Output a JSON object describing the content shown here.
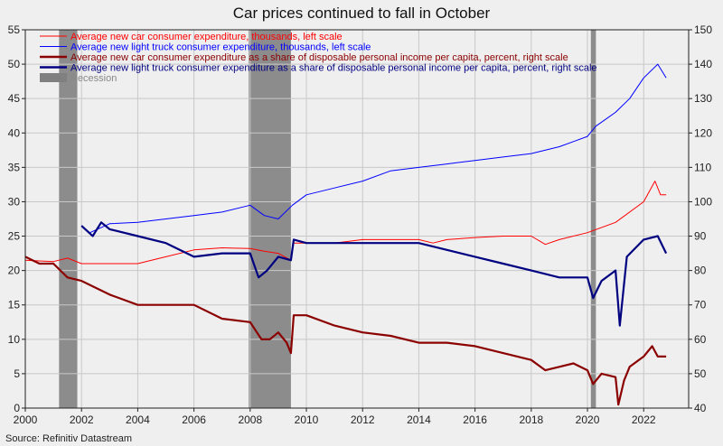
{
  "chart_data": {
    "type": "line",
    "title": "Car prices continued to fall in October",
    "source": "Source: Refinitiv Datastream",
    "x_ticks": [
      "2000",
      "2002",
      "2004",
      "2006",
      "2008",
      "2010",
      "2012",
      "2014",
      "2016",
      "2018",
      "2020",
      "2022"
    ],
    "x_range": [
      2000,
      2023.6
    ],
    "left_axis": {
      "range": [
        0,
        55
      ],
      "ticks": [
        "0",
        "5",
        "10",
        "15",
        "20",
        "25",
        "30",
        "35",
        "40",
        "45",
        "50",
        "55"
      ]
    },
    "right_axis": {
      "range": [
        40,
        150
      ],
      "ticks": [
        "40",
        "50",
        "60",
        "70",
        "80",
        "90",
        "100",
        "110",
        "120",
        "130",
        "140",
        "150"
      ]
    },
    "recessions": [
      {
        "start": 2001.2,
        "end": 2001.85
      },
      {
        "start": 2007.95,
        "end": 2009.45
      },
      {
        "start": 2020.12,
        "end": 2020.3
      }
    ],
    "grid": true,
    "legend_position": "top-left",
    "legend": [
      {
        "label": "Average new car consumer expenditure, thousands, left scale",
        "color": "#ff0000",
        "style": "thin"
      },
      {
        "label": "Average new light truck consumer expenditure, thousands, left scale",
        "color": "#0000ff",
        "style": "thin"
      },
      {
        "label": "Average new car consumer expenditure as a share of disposable personal income per capita, percent, right scale",
        "color": "#8b0000",
        "style": "thick"
      },
      {
        "label": "Average new light truck consumer expenditure as a share of disposable personal income per capita, percent, right scale",
        "color": "#000080",
        "style": "thick"
      },
      {
        "label": "Recession",
        "color": "#808080",
        "style": "box"
      }
    ],
    "series": [
      {
        "name": "Average new car consumer expenditure, thousands, left scale",
        "axis": "left",
        "color": "#ff0000",
        "width": 1,
        "points": [
          [
            2000,
            21.5
          ],
          [
            2001,
            21.3
          ],
          [
            2001.5,
            21.8
          ],
          [
            2002,
            21
          ],
          [
            2003,
            21
          ],
          [
            2004,
            21
          ],
          [
            2005,
            22
          ],
          [
            2006,
            23
          ],
          [
            2007,
            23.3
          ],
          [
            2008,
            23.2
          ],
          [
            2008.5,
            22.8
          ],
          [
            2009,
            22.5
          ],
          [
            2009.45,
            21.5
          ],
          [
            2009.55,
            24
          ],
          [
            2010,
            24
          ],
          [
            2011,
            24
          ],
          [
            2012,
            24.5
          ],
          [
            2013,
            24.5
          ],
          [
            2014,
            24.5
          ],
          [
            2014.5,
            24
          ],
          [
            2015,
            24.5
          ],
          [
            2016,
            24.8
          ],
          [
            2017,
            25
          ],
          [
            2018,
            25
          ],
          [
            2018.5,
            23.8
          ],
          [
            2019,
            24.5
          ],
          [
            2020,
            25.5
          ],
          [
            2021,
            27
          ],
          [
            2022,
            30
          ],
          [
            2022.4,
            33
          ],
          [
            2022.6,
            31
          ],
          [
            2022.8,
            31
          ]
        ]
      },
      {
        "name": "Average new light truck consumer expenditure, thousands, left scale",
        "axis": "left",
        "color": "#0000ff",
        "width": 1,
        "points": [
          [
            2002,
            26.5
          ],
          [
            2002.3,
            25.5
          ],
          [
            2003,
            26.8
          ],
          [
            2004,
            27
          ],
          [
            2005,
            27.5
          ],
          [
            2006,
            28
          ],
          [
            2007,
            28.5
          ],
          [
            2008,
            29.5
          ],
          [
            2008.5,
            28
          ],
          [
            2009,
            27.5
          ],
          [
            2009.5,
            29.5
          ],
          [
            2010,
            31
          ],
          [
            2011,
            32
          ],
          [
            2012,
            33
          ],
          [
            2013,
            34.5
          ],
          [
            2014,
            35
          ],
          [
            2015,
            35.5
          ],
          [
            2016,
            36
          ],
          [
            2017,
            36.5
          ],
          [
            2018,
            37
          ],
          [
            2019,
            38
          ],
          [
            2020,
            39.5
          ],
          [
            2020.3,
            41
          ],
          [
            2021,
            43
          ],
          [
            2021.5,
            45
          ],
          [
            2022,
            48
          ],
          [
            2022.5,
            50
          ],
          [
            2022.8,
            48
          ]
        ]
      },
      {
        "name": "Average new car consumer expenditure as a share of disposable personal income per capita, percent, right scale",
        "axis": "right",
        "color": "#8b0000",
        "width": 2.2,
        "points": [
          [
            2000,
            84
          ],
          [
            2000.5,
            82
          ],
          [
            2001,
            82
          ],
          [
            2001.5,
            78
          ],
          [
            2002,
            77
          ],
          [
            2003,
            73
          ],
          [
            2004,
            70
          ],
          [
            2005,
            70
          ],
          [
            2006,
            70
          ],
          [
            2007,
            66
          ],
          [
            2008,
            65
          ],
          [
            2008.4,
            60
          ],
          [
            2008.7,
            60
          ],
          [
            2009,
            62
          ],
          [
            2009.3,
            59
          ],
          [
            2009.45,
            56
          ],
          [
            2009.55,
            67
          ],
          [
            2010,
            67
          ],
          [
            2011,
            64
          ],
          [
            2012,
            62
          ],
          [
            2013,
            61
          ],
          [
            2014,
            59
          ],
          [
            2015,
            59
          ],
          [
            2016,
            58
          ],
          [
            2017,
            56
          ],
          [
            2018,
            54
          ],
          [
            2018.5,
            51
          ],
          [
            2019,
            52
          ],
          [
            2019.5,
            53
          ],
          [
            2020,
            51
          ],
          [
            2020.2,
            47
          ],
          [
            2020.5,
            50
          ],
          [
            2021,
            49
          ],
          [
            2021.1,
            41
          ],
          [
            2021.3,
            48
          ],
          [
            2021.5,
            52
          ],
          [
            2022,
            55
          ],
          [
            2022.3,
            58
          ],
          [
            2022.5,
            55
          ],
          [
            2022.8,
            55
          ]
        ]
      },
      {
        "name": "Average new light truck consumer expenditure as a share of disposable personal income per capita, percent, right scale",
        "axis": "right",
        "color": "#000080",
        "width": 2.2,
        "points": [
          [
            2002,
            93
          ],
          [
            2002.4,
            90
          ],
          [
            2002.7,
            94
          ],
          [
            2003,
            92
          ],
          [
            2004,
            90
          ],
          [
            2005,
            88
          ],
          [
            2006,
            84
          ],
          [
            2007,
            85
          ],
          [
            2008,
            85
          ],
          [
            2008.3,
            78
          ],
          [
            2008.6,
            80
          ],
          [
            2009,
            84
          ],
          [
            2009.45,
            83
          ],
          [
            2009.55,
            89
          ],
          [
            2010,
            88
          ],
          [
            2011,
            88
          ],
          [
            2012,
            88
          ],
          [
            2013,
            88
          ],
          [
            2014,
            88
          ],
          [
            2015,
            86
          ],
          [
            2016,
            84
          ],
          [
            2017,
            82
          ],
          [
            2018,
            80
          ],
          [
            2019,
            78
          ],
          [
            2020,
            78
          ],
          [
            2020.2,
            72
          ],
          [
            2020.5,
            77
          ],
          [
            2021,
            80
          ],
          [
            2021.15,
            64
          ],
          [
            2021.4,
            84
          ],
          [
            2022,
            89
          ],
          [
            2022.5,
            90
          ],
          [
            2022.8,
            85
          ]
        ]
      }
    ]
  }
}
